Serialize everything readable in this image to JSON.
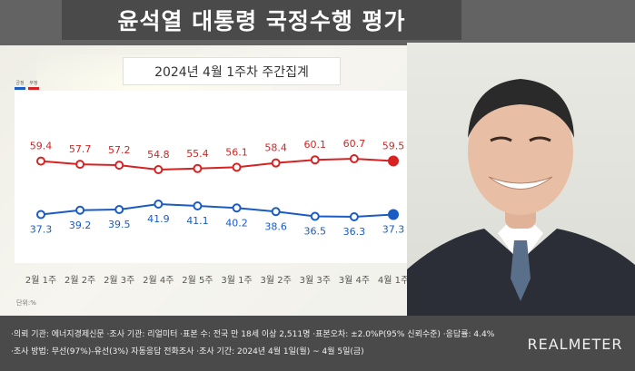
{
  "header": {
    "title": "윤석열 대통령 국정수행 평가"
  },
  "subtitle": "2024년 4월 1주차 주간집계",
  "legend": [
    {
      "label": "긍정",
      "color": "#1a5bc4"
    },
    {
      "label": "부정",
      "color": "#d62222"
    }
  ],
  "unit_label": "단위:%",
  "chart_data": {
    "type": "line",
    "categories": [
      "2월 1주",
      "2월 2주",
      "2월 3주",
      "2월 4주",
      "2월 5주",
      "3월 1주",
      "3월 2주",
      "3월 3주",
      "3월 4주",
      "4월 1주"
    ],
    "series": [
      {
        "name": "부정",
        "color": "#d62222",
        "values": [
          59.4,
          57.7,
          57.2,
          54.8,
          55.4,
          56.1,
          58.4,
          60.1,
          60.7,
          59.5
        ]
      },
      {
        "name": "긍정",
        "color": "#1a5bc4",
        "values": [
          37.3,
          39.2,
          39.5,
          41.9,
          41.1,
          40.2,
          38.6,
          36.5,
          36.3,
          37.3
        ]
      }
    ],
    "title": "2024년 4월 1주차 주간집계",
    "xlabel": "",
    "ylabel": "",
    "grid": false,
    "legend_position": "top-left"
  },
  "footer": {
    "notes": [
      "·의뢰 기관: 에너지경제신문 ·조사 기관: 리얼미터 ·표본 수: 전국 만 18세 이상 2,511명 ·표본오차: ±2.0%P(95% 신뢰수준) ·응답률: 4.4%",
      "·조사 방법: 무선(97%)-유선(3%) 자동응답 전화조사 ·조사 기간: 2024년 4월 1일(월) ~ 4월 5일(금)"
    ],
    "brand": "REALMETER"
  }
}
